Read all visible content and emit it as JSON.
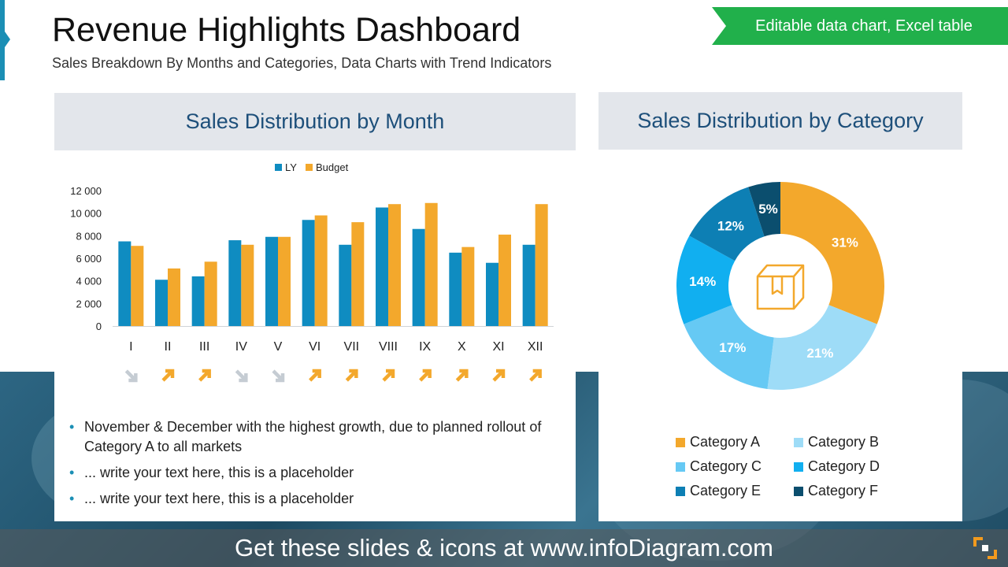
{
  "header": {
    "title": "Revenue Highlights Dashboard",
    "subtitle": "Sales Breakdown By Months and Categories, Data Charts with Trend Indicators",
    "badge": "Editable data chart, Excel table"
  },
  "left_panel": {
    "heading": "Sales Distribution by Month",
    "bullets": [
      "November & December with the highest growth, due to planned rollout of Category A to all markets",
      "... write your text here, this is a placeholder",
      "... write your text here, this is a placeholder"
    ],
    "trend_arrows": [
      "down",
      "up",
      "up",
      "down",
      "down",
      "up",
      "up",
      "up",
      "up",
      "up",
      "up",
      "up"
    ]
  },
  "right_panel": {
    "heading": "Sales Distribution by Category",
    "center_icon": "box-icon"
  },
  "footer": {
    "text": "Get these slides & icons at www.infoDiagram.com"
  },
  "colors": {
    "ly": "#0f8cc1",
    "budget": "#f3a82c",
    "trend_up": "#f3a82c",
    "trend_down": "#c5ccd3",
    "heading_text": "#1d4f7a",
    "badge": "#21b04b"
  },
  "chart_data": [
    {
      "type": "bar",
      "title": "Sales Distribution by Month",
      "categories": [
        "I",
        "II",
        "III",
        "IV",
        "V",
        "VI",
        "VII",
        "VIII",
        "IX",
        "X",
        "XI",
        "XII"
      ],
      "series": [
        {
          "name": "LY",
          "color": "#0f8cc1",
          "values": [
            7500,
            4100,
            4400,
            7600,
            7900,
            9400,
            7200,
            10500,
            8600,
            6500,
            5600,
            7200
          ]
        },
        {
          "name": "Budget",
          "color": "#f3a82c",
          "values": [
            7100,
            5100,
            5700,
            7200,
            7900,
            9800,
            9200,
            10800,
            10900,
            7000,
            8100,
            10800
          ]
        }
      ],
      "ylim": [
        0,
        12000
      ],
      "yticks": [
        0,
        2000,
        4000,
        6000,
        8000,
        10000,
        12000
      ],
      "ytick_labels": [
        "0",
        "2 000",
        "4 000",
        "6 000",
        "8 000",
        "10 000",
        "12 000"
      ],
      "legend": "top",
      "grid": false,
      "xlabel": "",
      "ylabel": ""
    },
    {
      "type": "pie",
      "title": "Sales Distribution by Category",
      "donut": true,
      "labels": [
        "Category A",
        "Category B",
        "Category C",
        "Category D",
        "Category E",
        "Category F"
      ],
      "values": [
        31,
        21,
        17,
        14,
        12,
        5
      ],
      "value_labels": [
        "31%",
        "21%",
        "17%",
        "14%",
        "12%",
        "5%"
      ],
      "colors": [
        "#f3a82c",
        "#9edcf7",
        "#66c9f4",
        "#11aff0",
        "#0d7fb4",
        "#0b4e6e"
      ],
      "legend": "bottom"
    }
  ]
}
